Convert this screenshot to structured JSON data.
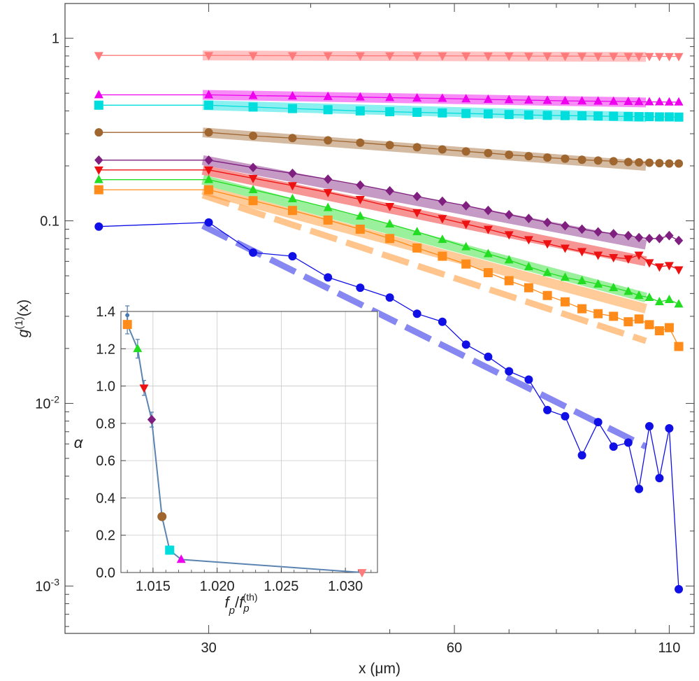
{
  "chart_data": [
    {
      "type": "line",
      "panel": "main",
      "xlabel": "x (μm)",
      "ylabel": "g(1)(x)",
      "yscale": "log",
      "xlim": [
        20,
        118
      ],
      "ylim": [
        0.00055,
        1.55
      ],
      "x_ticks": [
        {
          "value": 30,
          "label": "30"
        },
        {
          "value": 60,
          "label": "60"
        },
        {
          "value": 110,
          "label": "110"
        }
      ],
      "y_ticks": [
        {
          "value": 1,
          "label": "1"
        },
        {
          "value": 0.1,
          "label": "0.1"
        },
        {
          "value": 0.01,
          "label": "10",
          "exp": "-2"
        },
        {
          "value": 0.001,
          "label": "10",
          "exp": "-3"
        }
      ],
      "series": [
        {
          "name": "pink",
          "color": "#ff7b7b",
          "marker": "tri-down",
          "x": [
            22,
            30,
            34,
            38,
            42,
            46,
            50,
            54,
            58,
            62,
            66,
            70,
            74,
            78,
            82,
            86,
            90,
            94,
            98,
            101,
            104,
            107,
            110,
            113
          ],
          "y": [
            0.805,
            0.805,
            0.804,
            0.803,
            0.803,
            0.802,
            0.802,
            0.801,
            0.801,
            0.8,
            0.8,
            0.8,
            0.799,
            0.799,
            0.798,
            0.798,
            0.797,
            0.797,
            0.797,
            0.796,
            0.796,
            0.796,
            0.795,
            0.795
          ],
          "fit": {
            "x": [
              29.5,
              103
            ],
            "y": [
              0.805,
              0.79
            ]
          }
        },
        {
          "name": "magenta",
          "color": "#ee00ee",
          "marker": "tri-up",
          "x": [
            22,
            30,
            34,
            38,
            42,
            46,
            50,
            54,
            58,
            62,
            66,
            70,
            74,
            78,
            82,
            86,
            90,
            94,
            98,
            101,
            104,
            107,
            110,
            113
          ],
          "y": [
            0.49,
            0.49,
            0.485,
            0.482,
            0.479,
            0.476,
            0.473,
            0.47,
            0.468,
            0.465,
            0.462,
            0.46,
            0.458,
            0.456,
            0.454,
            0.453,
            0.452,
            0.451,
            0.45,
            0.449,
            0.448,
            0.448,
            0.447,
            0.447
          ],
          "fit": {
            "x": [
              29.5,
              103
            ],
            "y": [
              0.49,
              0.445
            ]
          }
        },
        {
          "name": "cyan",
          "color": "#00dddd",
          "marker": "square",
          "x": [
            22,
            30,
            34,
            38,
            42,
            46,
            50,
            54,
            58,
            62,
            66,
            70,
            74,
            78,
            82,
            86,
            90,
            94,
            98,
            101,
            104,
            107,
            110,
            113
          ],
          "y": [
            0.43,
            0.43,
            0.42,
            0.412,
            0.406,
            0.4,
            0.396,
            0.393,
            0.39,
            0.387,
            0.385,
            0.382,
            0.38,
            0.378,
            0.377,
            0.376,
            0.375,
            0.374,
            0.373,
            0.372,
            0.372,
            0.371,
            0.371,
            0.37
          ],
          "fit": {
            "x": [
              29.5,
              103
            ],
            "y": [
              0.43,
              0.37
            ]
          }
        },
        {
          "name": "brown",
          "color": "#a0662f",
          "marker": "circle",
          "x": [
            22,
            30,
            34,
            38,
            42,
            46,
            50,
            54,
            58,
            62,
            66,
            70,
            74,
            78,
            82,
            86,
            90,
            94,
            98,
            101,
            104,
            107,
            110,
            113
          ],
          "y": [
            0.305,
            0.305,
            0.292,
            0.284,
            0.276,
            0.268,
            0.26,
            0.253,
            0.246,
            0.24,
            0.235,
            0.23,
            0.226,
            0.222,
            0.219,
            0.216,
            0.214,
            0.212,
            0.21,
            0.209,
            0.208,
            0.207,
            0.206,
            0.206
          ],
          "fit": {
            "x": [
              29.5,
              103
            ],
            "y": [
              0.305,
              0.2
            ]
          }
        },
        {
          "name": "purple",
          "color": "#7f1f7f",
          "marker": "diamond",
          "x": [
            22,
            30,
            34,
            38,
            42,
            46,
            50,
            54,
            58,
            62,
            66,
            70,
            74,
            78,
            82,
            86,
            90,
            94,
            98,
            101,
            104,
            107,
            110,
            113
          ],
          "y": [
            0.215,
            0.215,
            0.196,
            0.182,
            0.169,
            0.157,
            0.146,
            0.136,
            0.128,
            0.121,
            0.114,
            0.108,
            0.103,
            0.098,
            0.094,
            0.09,
            0.087,
            0.085,
            0.083,
            0.081,
            0.08,
            0.08,
            0.083,
            0.078
          ],
          "fit": {
            "x": [
              29.5,
              103
            ],
            "y": [
              0.215,
              0.074
            ]
          }
        },
        {
          "name": "red",
          "color": "#ee1111",
          "marker": "tri-down",
          "x": [
            22,
            30,
            34,
            38,
            42,
            46,
            50,
            54,
            58,
            62,
            66,
            70,
            74,
            78,
            82,
            86,
            90,
            94,
            98,
            101,
            104,
            107,
            110,
            113
          ],
          "y": [
            0.19,
            0.19,
            0.171,
            0.156,
            0.143,
            0.131,
            0.12,
            0.111,
            0.103,
            0.096,
            0.09,
            0.084,
            0.079,
            0.075,
            0.071,
            0.068,
            0.065,
            0.063,
            0.062,
            0.065,
            0.059,
            0.056,
            0.057,
            0.054
          ],
          "fit": {
            "x": [
              29.5,
              103
            ],
            "y": [
              0.19,
              0.06
            ]
          }
        },
        {
          "name": "green",
          "color": "#22dd22",
          "marker": "tri-up",
          "x": [
            22,
            30,
            34,
            38,
            42,
            46,
            50,
            54,
            58,
            62,
            66,
            70,
            74,
            78,
            82,
            86,
            90,
            94,
            98,
            101,
            104,
            107,
            110,
            113
          ],
          "y": [
            0.168,
            0.168,
            0.148,
            0.132,
            0.118,
            0.106,
            0.096,
            0.087,
            0.079,
            0.072,
            0.066,
            0.061,
            0.056,
            0.052,
            0.049,
            0.047,
            0.045,
            0.043,
            0.041,
            0.039,
            0.038,
            0.036,
            0.037,
            0.035
          ],
          "fit": {
            "x": [
              29.5,
              103
            ],
            "y": [
              0.168,
              0.038
            ]
          }
        },
        {
          "name": "orange",
          "color": "#ff8c1a",
          "marker": "square",
          "x": [
            22,
            30,
            34,
            38,
            42,
            46,
            50,
            54,
            58,
            62,
            66,
            70,
            74,
            78,
            82,
            86,
            90,
            94,
            98,
            101,
            104,
            107,
            110,
            113
          ],
          "y": [
            0.148,
            0.148,
            0.129,
            0.114,
            0.101,
            0.09,
            0.08,
            0.071,
            0.064,
            0.058,
            0.052,
            0.047,
            0.043,
            0.039,
            0.036,
            0.033,
            0.031,
            0.03,
            0.028,
            0.029,
            0.027,
            0.025,
            0.026,
            0.0205
          ],
          "fit": {
            "x": [
              29.5,
              103
            ],
            "y": [
              0.148,
              0.033
            ]
          },
          "fit_dashed": {
            "x": [
              29.5,
              103
            ],
            "y": [
              0.138,
              0.022
            ]
          }
        },
        {
          "name": "blue",
          "color": "#1010e6",
          "marker": "circle",
          "x": [
            22,
            30,
            34,
            38,
            42,
            46,
            50,
            54,
            58,
            62,
            66,
            70,
            74,
            78,
            82,
            86,
            90,
            94,
            98,
            101,
            104,
            107,
            110,
            113
          ],
          "y": [
            0.093,
            0.098,
            0.067,
            0.064,
            0.049,
            0.043,
            0.038,
            0.031,
            0.028,
            0.021,
            0.018,
            0.015,
            0.0135,
            0.0092,
            0.0085,
            0.0052,
            0.0079,
            0.0058,
            0.0061,
            0.0034,
            0.0075,
            0.0039,
            0.0073,
            0.00096
          ],
          "fit_dashed": {
            "x": [
              29.5,
              103
            ],
            "y": [
              0.094,
              0.0058
            ]
          }
        }
      ]
    },
    {
      "type": "scatter",
      "panel": "inset",
      "xlabel": "fp/fp(th)",
      "xlabel_parts": {
        "base": "f",
        "sub1": "p",
        "sep": "/",
        "base2": "f",
        "sub2": "p",
        "sup2": "(th)"
      },
      "ylabel": "α",
      "xlim": [
        1.0125,
        1.0325
      ],
      "ylim": [
        0,
        1.4
      ],
      "grid": true,
      "x_ticks": [
        {
          "value": 1.015,
          "label": "1.015"
        },
        {
          "value": 1.02,
          "label": "1.020"
        },
        {
          "value": 1.025,
          "label": "1.025"
        },
        {
          "value": 1.03,
          "label": "1.030"
        }
      ],
      "y_ticks": [
        {
          "value": 0,
          "label": "0.0"
        },
        {
          "value": 0.2,
          "label": "0.2"
        },
        {
          "value": 0.4,
          "label": "0.4"
        },
        {
          "value": 0.6,
          "label": "0.6"
        },
        {
          "value": 0.8,
          "label": "0.8"
        },
        {
          "value": 1.0,
          "label": "1.0"
        },
        {
          "value": 1.2,
          "label": "1.2"
        },
        {
          "value": 1.4,
          "label": "1.4"
        }
      ],
      "line_color": "#5b84b1",
      "points": [
        {
          "x": 1.013,
          "y": 1.38,
          "err": 0.05,
          "color": "#4a7ab0",
          "marker": "dot"
        },
        {
          "x": 1.013,
          "y": 1.33,
          "err": 0.05,
          "color": "#ff8c1a",
          "marker": "square"
        },
        {
          "x": 1.0138,
          "y": 1.2,
          "err": 0.05,
          "color": "#22dd22",
          "marker": "tri-up"
        },
        {
          "x": 1.0143,
          "y": 0.99,
          "err": 0.04,
          "color": "#ee1111",
          "marker": "tri-down"
        },
        {
          "x": 1.0149,
          "y": 0.82,
          "err": 0.04,
          "color": "#7f1f7f",
          "marker": "diamond"
        },
        {
          "x": 1.0157,
          "y": 0.3,
          "err": 0.0,
          "color": "#a0662f",
          "marker": "circle"
        },
        {
          "x": 1.0163,
          "y": 0.12,
          "err": 0.0,
          "color": "#00dddd",
          "marker": "square"
        },
        {
          "x": 1.0172,
          "y": 0.07,
          "err": 0.0,
          "color": "#ee00ee",
          "marker": "tri-up"
        },
        {
          "x": 1.0313,
          "y": 0.0,
          "err": 0.0,
          "color": "#ff7b7b",
          "marker": "tri-down"
        }
      ]
    }
  ]
}
